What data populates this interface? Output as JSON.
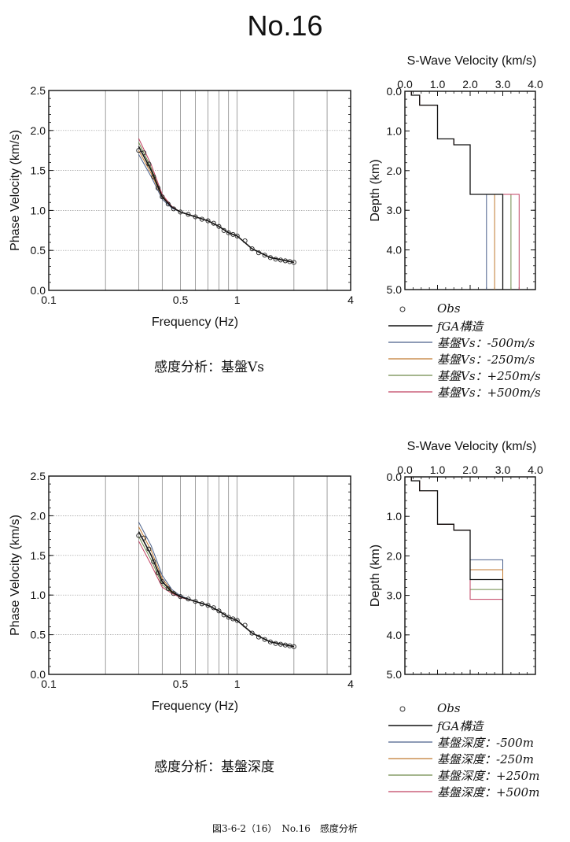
{
  "page_title": "No.16",
  "figure_caption": "図3-6-2（16）　No.16　感度分析",
  "panels": [
    {
      "caption": "感度分析：基盤Vs",
      "legend": [
        {
          "label": "Obs",
          "color": "#333333",
          "kind": "marker"
        },
        {
          "label": "fGA構造",
          "color": "#111111",
          "kind": "line"
        },
        {
          "label": "基盤Vs：-500m/s",
          "color": "#4a5f8a",
          "kind": "line"
        },
        {
          "label": "基盤Vs：-250m/s",
          "color": "#c07a30",
          "kind": "line"
        },
        {
          "label": "基盤Vs：+250m/s",
          "color": "#6f8a4a",
          "kind": "line"
        },
        {
          "label": "基盤Vs：+500m/s",
          "color": "#c04060",
          "kind": "line"
        }
      ]
    },
    {
      "caption": "感度分析：基盤深度",
      "legend": [
        {
          "label": "Obs",
          "color": "#333333",
          "kind": "marker"
        },
        {
          "label": "fGA構造",
          "color": "#111111",
          "kind": "line"
        },
        {
          "label": "基盤深度：-500m",
          "color": "#4a5f8a",
          "kind": "line"
        },
        {
          "label": "基盤深度：-250m",
          "color": "#c07a30",
          "kind": "line"
        },
        {
          "label": "基盤深度：+250m",
          "color": "#6f8a4a",
          "kind": "line"
        },
        {
          "label": "基盤深度：+500m",
          "color": "#c04060",
          "kind": "line"
        }
      ]
    }
  ],
  "chart_data": [
    {
      "type": "line",
      "xlabel": "Frequency (Hz)",
      "ylabel": "Phase Velocity (km/s)",
      "x_scale": "log",
      "xlim": [
        0.1,
        4
      ],
      "ylim": [
        0.0,
        2.5
      ],
      "x_ticks": [
        {
          "v": 0.1,
          "label": "0.1"
        },
        {
          "v": 0.5,
          "label": "0.5"
        },
        {
          "v": 1,
          "label": "1"
        },
        {
          "v": 4,
          "label": "4"
        }
      ],
      "y_ticks": [
        "0.0",
        "0.5",
        "1.0",
        "1.5",
        "2.0",
        "2.5"
      ],
      "grid": true,
      "obs": {
        "x": [
          0.3,
          0.32,
          0.34,
          0.36,
          0.38,
          0.4,
          0.43,
          0.46,
          0.5,
          0.55,
          0.6,
          0.65,
          0.7,
          0.75,
          0.8,
          0.85,
          0.9,
          0.95,
          1.0,
          1.1,
          1.2,
          1.3,
          1.4,
          1.5,
          1.6,
          1.7,
          1.8,
          1.9,
          2.0
        ],
        "y": [
          1.75,
          1.72,
          1.58,
          1.42,
          1.28,
          1.17,
          1.08,
          1.02,
          0.98,
          0.95,
          0.92,
          0.89,
          0.87,
          0.84,
          0.8,
          0.75,
          0.72,
          0.7,
          0.68,
          0.62,
          0.52,
          0.47,
          0.44,
          0.41,
          0.39,
          0.38,
          0.37,
          0.36,
          0.35
        ]
      },
      "series": [
        {
          "name": "fGA構造",
          "color": "#111111",
          "x": [
            0.3,
            0.35,
            0.4,
            0.45,
            0.5,
            0.6,
            0.7,
            0.8,
            0.9,
            1.0,
            1.2,
            1.5,
            2.0
          ],
          "y": [
            1.8,
            1.5,
            1.17,
            1.04,
            0.98,
            0.92,
            0.87,
            0.8,
            0.72,
            0.68,
            0.52,
            0.41,
            0.35
          ]
        },
        {
          "name": "基盤Vs：-500m/s",
          "color": "#4a5f8a",
          "x": [
            0.3,
            0.35,
            0.4,
            0.45,
            0.5,
            0.6,
            0.7,
            0.8,
            0.9,
            1.0,
            1.2,
            1.5,
            2.0
          ],
          "y": [
            1.7,
            1.42,
            1.14,
            1.03,
            0.98,
            0.92,
            0.87,
            0.8,
            0.72,
            0.68,
            0.52,
            0.41,
            0.35
          ]
        },
        {
          "name": "基盤Vs：-250m/s",
          "color": "#c07a30",
          "x": [
            0.3,
            0.35,
            0.4,
            0.45,
            0.5,
            0.6,
            0.7,
            0.8,
            0.9,
            1.0,
            1.2,
            1.5,
            2.0
          ],
          "y": [
            1.75,
            1.46,
            1.16,
            1.04,
            0.98,
            0.92,
            0.87,
            0.8,
            0.72,
            0.68,
            0.52,
            0.41,
            0.35
          ]
        },
        {
          "name": "基盤Vs：+250m/s",
          "color": "#6f8a4a",
          "x": [
            0.3,
            0.35,
            0.4,
            0.45,
            0.5,
            0.6,
            0.7,
            0.8,
            0.9,
            1.0,
            1.2,
            1.5,
            2.0
          ],
          "y": [
            1.85,
            1.53,
            1.18,
            1.05,
            0.98,
            0.92,
            0.87,
            0.8,
            0.72,
            0.68,
            0.52,
            0.41,
            0.35
          ]
        },
        {
          "name": "基盤Vs：+500m/s",
          "color": "#c04060",
          "x": [
            0.3,
            0.35,
            0.4,
            0.45,
            0.5,
            0.6,
            0.7,
            0.8,
            0.9,
            1.0,
            1.2,
            1.5,
            2.0
          ],
          "y": [
            1.9,
            1.57,
            1.2,
            1.05,
            0.98,
            0.92,
            0.87,
            0.8,
            0.72,
            0.68,
            0.52,
            0.41,
            0.35
          ]
        }
      ]
    },
    {
      "type": "line",
      "title": "S-Wave Velocity (km/s)",
      "ylabel": "Depth (km)",
      "xlim": [
        0.0,
        4.0
      ],
      "ylim": [
        0.0,
        5.0
      ],
      "x_ticks": [
        "0.0",
        "1.0",
        "2.0",
        "3.0",
        "4.0"
      ],
      "y_ticks": [
        "0.0",
        "1.0",
        "2.0",
        "3.0",
        "4.0",
        "5.0"
      ],
      "grid": false,
      "series": [
        {
          "name": "fGA構造",
          "color": "#111111",
          "vs": [
            0.2,
            0.45,
            1.0,
            1.5,
            2.0,
            3.0
          ],
          "depth": [
            0.0,
            0.1,
            0.35,
            1.2,
            1.35,
            2.6,
            5.0
          ]
        },
        {
          "name": "基盤Vs：-500m/s",
          "color": "#4a5f8a",
          "vs": [
            0.2,
            0.45,
            1.0,
            1.5,
            2.0,
            2.5
          ],
          "depth": [
            0.0,
            0.1,
            0.35,
            1.2,
            1.35,
            2.6,
            5.0
          ]
        },
        {
          "name": "基盤Vs：-250m/s",
          "color": "#c07a30",
          "vs": [
            0.2,
            0.45,
            1.0,
            1.5,
            2.0,
            2.75
          ],
          "depth": [
            0.0,
            0.1,
            0.35,
            1.2,
            1.35,
            2.6,
            5.0
          ]
        },
        {
          "name": "基盤Vs：+250m/s",
          "color": "#6f8a4a",
          "vs": [
            0.2,
            0.45,
            1.0,
            1.5,
            2.0,
            3.25
          ],
          "depth": [
            0.0,
            0.1,
            0.35,
            1.2,
            1.35,
            2.6,
            5.0
          ]
        },
        {
          "name": "基盤Vs：+500m/s",
          "color": "#c04060",
          "vs": [
            0.2,
            0.45,
            1.0,
            1.5,
            2.0,
            3.5
          ],
          "depth": [
            0.0,
            0.1,
            0.35,
            1.2,
            1.35,
            2.6,
            5.0
          ]
        }
      ]
    },
    {
      "type": "line",
      "xlabel": "Frequency (Hz)",
      "ylabel": "Phase Velocity (km/s)",
      "x_scale": "log",
      "xlim": [
        0.1,
        4
      ],
      "ylim": [
        0.0,
        2.5
      ],
      "x_ticks": [
        {
          "v": 0.1,
          "label": "0.1"
        },
        {
          "v": 0.5,
          "label": "0.5"
        },
        {
          "v": 1,
          "label": "1"
        },
        {
          "v": 4,
          "label": "4"
        }
      ],
      "y_ticks": [
        "0.0",
        "0.5",
        "1.0",
        "1.5",
        "2.0",
        "2.5"
      ],
      "grid": true,
      "obs": {
        "x": [
          0.3,
          0.32,
          0.34,
          0.36,
          0.38,
          0.4,
          0.43,
          0.46,
          0.5,
          0.55,
          0.6,
          0.65,
          0.7,
          0.75,
          0.8,
          0.85,
          0.9,
          0.95,
          1.0,
          1.1,
          1.2,
          1.3,
          1.4,
          1.5,
          1.6,
          1.7,
          1.8,
          1.9,
          2.0
        ],
        "y": [
          1.75,
          1.72,
          1.58,
          1.42,
          1.28,
          1.17,
          1.08,
          1.02,
          0.98,
          0.95,
          0.92,
          0.89,
          0.87,
          0.84,
          0.8,
          0.75,
          0.72,
          0.7,
          0.68,
          0.62,
          0.52,
          0.47,
          0.44,
          0.41,
          0.39,
          0.38,
          0.37,
          0.36,
          0.35
        ]
      },
      "series": [
        {
          "name": "fGA構造",
          "color": "#111111",
          "x": [
            0.3,
            0.35,
            0.4,
            0.45,
            0.5,
            0.6,
            0.7,
            0.8,
            0.9,
            1.0,
            1.2,
            1.5,
            2.0
          ],
          "y": [
            1.8,
            1.5,
            1.17,
            1.04,
            0.98,
            0.92,
            0.87,
            0.8,
            0.72,
            0.68,
            0.52,
            0.41,
            0.35
          ]
        },
        {
          "name": "基盤深度：-500m",
          "color": "#4a5f8a",
          "x": [
            0.3,
            0.35,
            0.4,
            0.45,
            0.5,
            0.6,
            0.7,
            0.8,
            0.9,
            1.0,
            1.2,
            1.5,
            2.0
          ],
          "y": [
            1.92,
            1.62,
            1.25,
            1.07,
            0.99,
            0.92,
            0.87,
            0.8,
            0.72,
            0.68,
            0.52,
            0.41,
            0.35
          ]
        },
        {
          "name": "基盤深度：-250m",
          "color": "#c07a30",
          "x": [
            0.3,
            0.35,
            0.4,
            0.45,
            0.5,
            0.6,
            0.7,
            0.8,
            0.9,
            1.0,
            1.2,
            1.5,
            2.0
          ],
          "y": [
            1.86,
            1.56,
            1.21,
            1.05,
            0.98,
            0.92,
            0.87,
            0.8,
            0.72,
            0.68,
            0.52,
            0.41,
            0.35
          ]
        },
        {
          "name": "基盤深度：+250m",
          "color": "#6f8a4a",
          "x": [
            0.3,
            0.35,
            0.4,
            0.45,
            0.5,
            0.6,
            0.7,
            0.8,
            0.9,
            1.0,
            1.2,
            1.5,
            2.0
          ],
          "y": [
            1.74,
            1.44,
            1.13,
            1.03,
            0.97,
            0.92,
            0.87,
            0.8,
            0.72,
            0.68,
            0.52,
            0.41,
            0.35
          ]
        },
        {
          "name": "基盤深度：+500m",
          "color": "#c04060",
          "x": [
            0.3,
            0.35,
            0.4,
            0.45,
            0.5,
            0.6,
            0.7,
            0.8,
            0.9,
            1.0,
            1.2,
            1.5,
            2.0
          ],
          "y": [
            1.68,
            1.38,
            1.1,
            1.02,
            0.97,
            0.92,
            0.87,
            0.8,
            0.72,
            0.68,
            0.52,
            0.41,
            0.35
          ]
        }
      ]
    },
    {
      "type": "line",
      "title": "S-Wave Velocity (km/s)",
      "ylabel": "Depth (km)",
      "xlim": [
        0.0,
        4.0
      ],
      "ylim": [
        0.0,
        5.0
      ],
      "x_ticks": [
        "0.0",
        "1.0",
        "2.0",
        "3.0",
        "4.0"
      ],
      "y_ticks": [
        "0.0",
        "1.0",
        "2.0",
        "3.0",
        "4.0",
        "5.0"
      ],
      "grid": false,
      "series": [
        {
          "name": "fGA構造",
          "color": "#111111",
          "vs": [
            0.2,
            0.45,
            1.0,
            1.5,
            2.0,
            3.0
          ],
          "depth": [
            0.0,
            0.1,
            0.35,
            1.2,
            1.35,
            2.6,
            5.0
          ]
        },
        {
          "name": "基盤深度：-500m",
          "color": "#4a5f8a",
          "vs": [
            0.2,
            0.45,
            1.0,
            1.5,
            2.0,
            3.0
          ],
          "depth": [
            0.0,
            0.1,
            0.35,
            1.2,
            1.35,
            2.1,
            5.0
          ]
        },
        {
          "name": "基盤深度：-250m",
          "color": "#c07a30",
          "vs": [
            0.2,
            0.45,
            1.0,
            1.5,
            2.0,
            3.0
          ],
          "depth": [
            0.0,
            0.1,
            0.35,
            1.2,
            1.35,
            2.35,
            5.0
          ]
        },
        {
          "name": "基盤深度：+250m",
          "color": "#6f8a4a",
          "vs": [
            0.2,
            0.45,
            1.0,
            1.5,
            2.0,
            3.0
          ],
          "depth": [
            0.0,
            0.1,
            0.35,
            1.2,
            1.35,
            2.85,
            5.0
          ]
        },
        {
          "name": "基盤深度：+500m",
          "color": "#c04060",
          "vs": [
            0.2,
            0.45,
            1.0,
            1.5,
            2.0,
            3.0
          ],
          "depth": [
            0.0,
            0.1,
            0.35,
            1.2,
            1.35,
            3.1,
            5.0
          ]
        }
      ]
    }
  ]
}
